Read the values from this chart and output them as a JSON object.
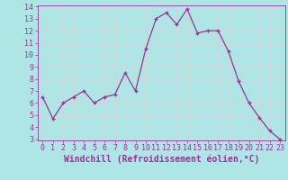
{
  "x": [
    0,
    1,
    2,
    3,
    4,
    5,
    6,
    7,
    8,
    9,
    10,
    11,
    12,
    13,
    14,
    15,
    16,
    17,
    18,
    19,
    20,
    21,
    22,
    23
  ],
  "y": [
    6.5,
    4.7,
    6.0,
    6.5,
    7.0,
    6.0,
    6.5,
    6.7,
    8.5,
    7.0,
    10.5,
    13.0,
    13.5,
    12.5,
    13.8,
    11.8,
    12.0,
    12.0,
    10.3,
    7.8,
    6.0,
    4.8,
    3.7,
    3.0
  ],
  "line_color": "#993399",
  "marker": "+",
  "bg_color": "#aee6e6",
  "grid_color": "#c8d8d8",
  "xlabel": "Windchill (Refroidissement éolien,°C)",
  "ylim": [
    3,
    14
  ],
  "xlim": [
    -0.5,
    23.5
  ],
  "yticks": [
    3,
    4,
    5,
    6,
    7,
    8,
    9,
    10,
    11,
    12,
    13,
    14
  ],
  "xticks": [
    0,
    1,
    2,
    3,
    4,
    5,
    6,
    7,
    8,
    9,
    10,
    11,
    12,
    13,
    14,
    15,
    16,
    17,
    18,
    19,
    20,
    21,
    22,
    23
  ],
  "tick_color": "#993399",
  "label_color": "#993399",
  "xlabel_fontsize": 7,
  "tick_fontsize": 6
}
